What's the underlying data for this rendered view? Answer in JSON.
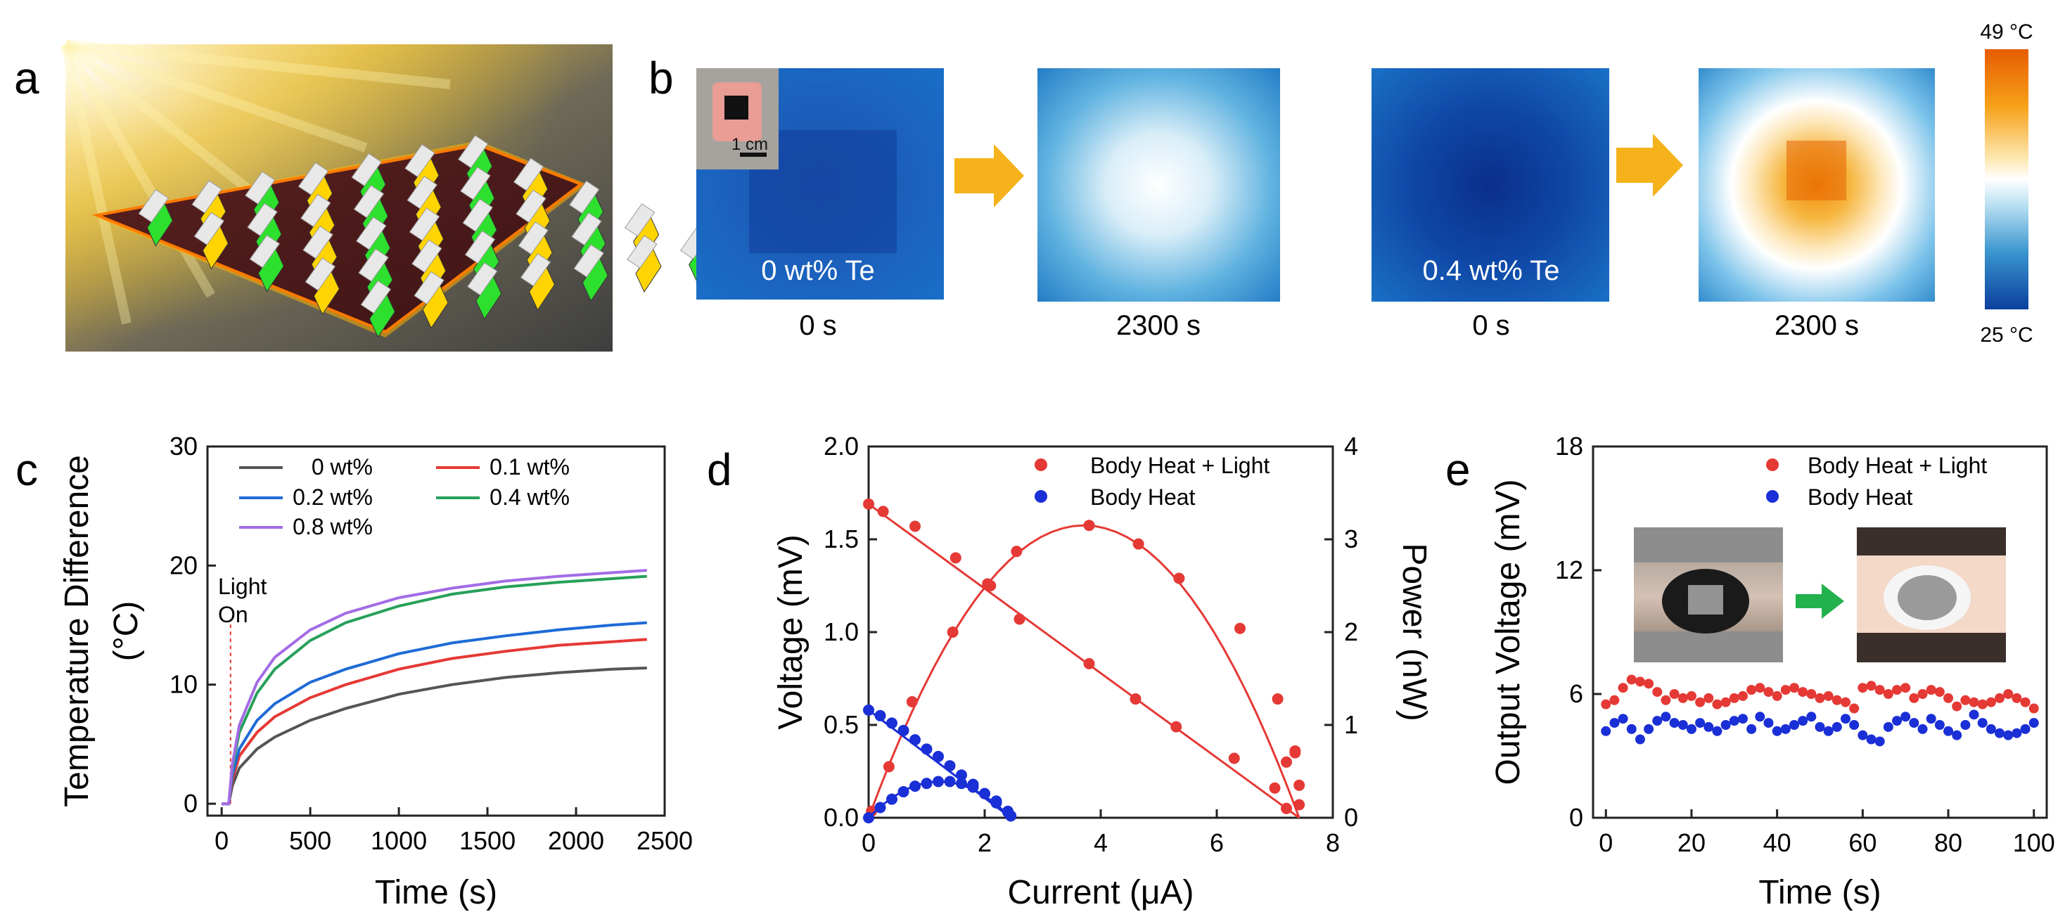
{
  "panel_labels": {
    "a": "a",
    "b": "b",
    "c": "c",
    "d": "d",
    "e": "e"
  },
  "panel_b": {
    "images": [
      {
        "caption": "0 s",
        "overlay": "0 wt% Te"
      },
      {
        "caption": "2300 s",
        "overlay": ""
      },
      {
        "caption": "0 s",
        "overlay": "0.4 wt% Te"
      },
      {
        "caption": "2300 s",
        "overlay": ""
      }
    ],
    "inset_scale": "1 cm",
    "colorbar_max": "49 °C",
    "colorbar_min": "25 °C",
    "colors": {
      "cold": "#0b3f9e",
      "mid": "#ffffff",
      "hot": "#e65c00",
      "arrow": "#f5b21b"
    }
  },
  "chart_data": [
    {
      "id": "c",
      "type": "line",
      "ylabel": "Temperature Difference",
      "ylabel_unit": "(°C)",
      "xlabel": "Time (s)",
      "xlim": [
        -80,
        2500
      ],
      "ylim": [
        -1,
        30
      ],
      "xticks": [
        "0",
        "500",
        "1000",
        "1500",
        "2000",
        "2500"
      ],
      "yticks": [
        "0",
        "10",
        "20",
        "30"
      ],
      "xtick_values": [
        0,
        500,
        1000,
        1500,
        2000,
        2500
      ],
      "ytick_values": [
        0,
        10,
        20,
        30
      ],
      "annotation": [
        "Light",
        "On"
      ],
      "light_on_time": 50,
      "series": [
        {
          "name": "0 wt%",
          "color": "#555555",
          "x": [
            0,
            40,
            60,
            100,
            200,
            300,
            500,
            700,
            1000,
            1300,
            1600,
            1900,
            2200,
            2400
          ],
          "y": [
            0,
            0,
            1.5,
            3.0,
            4.6,
            5.6,
            7.0,
            8.0,
            9.2,
            10.0,
            10.6,
            11.0,
            11.3,
            11.4
          ]
        },
        {
          "name": "0.1 wt%",
          "color": "#e53935",
          "x": [
            0,
            40,
            60,
            100,
            200,
            300,
            500,
            700,
            1000,
            1300,
            1600,
            1900,
            2200,
            2400
          ],
          "y": [
            0,
            0,
            2.0,
            4.0,
            6.0,
            7.3,
            8.9,
            10.0,
            11.3,
            12.2,
            12.8,
            13.3,
            13.6,
            13.8
          ]
        },
        {
          "name": "0.2 wt%",
          "color": "#1f6bd6",
          "x": [
            0,
            40,
            60,
            100,
            200,
            300,
            500,
            700,
            1000,
            1300,
            1600,
            1900,
            2200,
            2400
          ],
          "y": [
            0,
            0,
            2.4,
            4.6,
            7.0,
            8.4,
            10.2,
            11.3,
            12.6,
            13.5,
            14.1,
            14.6,
            15.0,
            15.2
          ]
        },
        {
          "name": "0.4 wt%",
          "color": "#27a05a",
          "x": [
            0,
            40,
            60,
            100,
            200,
            300,
            500,
            700,
            1000,
            1300,
            1600,
            1900,
            2200,
            2400
          ],
          "y": [
            0,
            0,
            3.0,
            6.0,
            9.3,
            11.3,
            13.7,
            15.2,
            16.6,
            17.6,
            18.2,
            18.6,
            18.9,
            19.1
          ]
        },
        {
          "name": "0.8 wt%",
          "color": "#a36ce6",
          "x": [
            0,
            40,
            60,
            100,
            200,
            300,
            500,
            700,
            1000,
            1300,
            1600,
            1900,
            2200,
            2400
          ],
          "y": [
            0,
            0,
            3.3,
            6.6,
            10.2,
            12.3,
            14.6,
            16.0,
            17.3,
            18.1,
            18.7,
            19.1,
            19.4,
            19.6
          ]
        }
      ]
    },
    {
      "id": "d",
      "type": "scatter",
      "xlabel": "Current (μA)",
      "ylabel": "Voltage (mV)",
      "ylabel_right": "Power (nW)",
      "xlim": [
        0,
        8
      ],
      "ylim": [
        0,
        2.0
      ],
      "ylim_right": [
        0,
        4
      ],
      "xticks": [
        "0",
        "2",
        "4",
        "6",
        "8"
      ],
      "yticks": [
        "0.0",
        "0.5",
        "1.0",
        "1.5",
        "2.0"
      ],
      "yticks_right": [
        "0",
        "1",
        "2",
        "3",
        "4"
      ],
      "xtick_values": [
        0,
        2,
        4,
        6,
        8
      ],
      "ytick_values": [
        0,
        0.5,
        1.0,
        1.5,
        2.0
      ],
      "ytick_values_right": [
        0,
        1,
        2,
        3,
        4
      ],
      "series": [
        {
          "name": "Body Heat + Light",
          "color": "#e53935",
          "voltage_x": [
            0,
            0.25,
            0.8,
            1.5,
            2.1,
            2.6,
            3.8,
            4.6,
            5.3,
            6.3,
            7.0,
            7.2,
            7.35,
            7.42
          ],
          "voltage_y": [
            1.69,
            1.65,
            1.57,
            1.4,
            1.25,
            1.07,
            0.83,
            0.64,
            0.49,
            0.32,
            0.16,
            0.3,
            0.36,
            0.07
          ],
          "power_x": [
            0.05,
            0.35,
            0.75,
            1.45,
            2.05,
            2.55,
            3.8,
            4.65,
            5.35,
            6.4,
            7.05,
            7.2,
            7.35,
            7.42
          ],
          "power_y": [
            0.07,
            0.55,
            1.25,
            2.0,
            2.52,
            2.87,
            3.15,
            2.95,
            2.58,
            2.04,
            1.28,
            0.1,
            0.7,
            0.35
          ]
        },
        {
          "name": "Body Heat",
          "color": "#1a2fd6",
          "voltage_x": [
            0,
            0.2,
            0.4,
            0.6,
            0.8,
            1.0,
            1.2,
            1.4,
            1.6,
            1.8,
            2.0,
            2.2,
            2.4,
            2.45
          ],
          "voltage_y": [
            0.58,
            0.55,
            0.51,
            0.47,
            0.42,
            0.37,
            0.33,
            0.28,
            0.23,
            0.18,
            0.13,
            0.08,
            0.03,
            0.01
          ],
          "power_x": [
            0,
            0.2,
            0.4,
            0.6,
            0.8,
            1.0,
            1.2,
            1.4,
            1.6,
            1.8,
            2.0,
            2.2,
            2.4,
            2.45
          ],
          "power_y": [
            0,
            0.11,
            0.2,
            0.28,
            0.34,
            0.37,
            0.39,
            0.39,
            0.37,
            0.33,
            0.26,
            0.18,
            0.07,
            0.02
          ]
        }
      ]
    },
    {
      "id": "e",
      "type": "scatter",
      "xlabel": "Time (s)",
      "ylabel": "Output Voltage (mV)",
      "xlim": [
        -3,
        103
      ],
      "ylim": [
        0,
        18
      ],
      "xticks": [
        "0",
        "20",
        "40",
        "60",
        "80",
        "100"
      ],
      "yticks": [
        "0",
        "6",
        "12",
        "18"
      ],
      "xtick_values": [
        0,
        20,
        40,
        60,
        80,
        100
      ],
      "ytick_values": [
        0,
        6,
        12,
        18
      ],
      "series": [
        {
          "name": "Body Heat + Light",
          "color": "#e53935",
          "x": [
            0,
            2,
            4,
            6,
            8,
            10,
            12,
            14,
            16,
            18,
            20,
            22,
            24,
            26,
            28,
            30,
            32,
            34,
            36,
            38,
            40,
            42,
            44,
            46,
            48,
            50,
            52,
            54,
            56,
            58,
            60,
            62,
            64,
            66,
            68,
            70,
            72,
            74,
            76,
            78,
            80,
            82,
            84,
            86,
            88,
            90,
            92,
            94,
            96,
            98,
            100
          ],
          "y": [
            5.5,
            5.7,
            6.3,
            6.7,
            6.6,
            6.5,
            6.1,
            5.7,
            6.0,
            5.8,
            5.9,
            5.6,
            5.8,
            5.5,
            5.6,
            5.8,
            5.9,
            6.2,
            6.3,
            6.1,
            5.9,
            6.2,
            6.3,
            6.1,
            6.0,
            5.8,
            5.9,
            5.7,
            5.6,
            5.3,
            6.3,
            6.4,
            6.2,
            6.0,
            6.2,
            6.3,
            5.8,
            6.0,
            6.2,
            6.1,
            5.8,
            5.4,
            5.7,
            5.6,
            5.5,
            5.6,
            5.8,
            6.0,
            5.8,
            5.6,
            5.3
          ]
        },
        {
          "name": "Body Heat",
          "color": "#1a2fd6",
          "x": [
            0,
            2,
            4,
            6,
            8,
            10,
            12,
            14,
            16,
            18,
            20,
            22,
            24,
            26,
            28,
            30,
            32,
            34,
            36,
            38,
            40,
            42,
            44,
            46,
            48,
            50,
            52,
            54,
            56,
            58,
            60,
            62,
            64,
            66,
            68,
            70,
            72,
            74,
            76,
            78,
            80,
            82,
            84,
            86,
            88,
            90,
            92,
            94,
            96,
            98,
            100
          ],
          "y": [
            4.2,
            4.6,
            4.8,
            4.3,
            3.8,
            4.3,
            4.7,
            4.9,
            4.6,
            4.5,
            4.3,
            4.6,
            4.4,
            4.2,
            4.5,
            4.7,
            4.8,
            4.3,
            4.9,
            4.6,
            4.2,
            4.3,
            4.5,
            4.7,
            4.9,
            4.4,
            4.2,
            4.4,
            4.8,
            4.5,
            4.0,
            3.8,
            3.7,
            4.4,
            4.7,
            4.9,
            4.6,
            4.3,
            4.8,
            4.5,
            4.2,
            4.0,
            4.5,
            5.0,
            4.6,
            4.3,
            4.1,
            4.0,
            4.1,
            4.3,
            4.6
          ]
        }
      ]
    }
  ]
}
